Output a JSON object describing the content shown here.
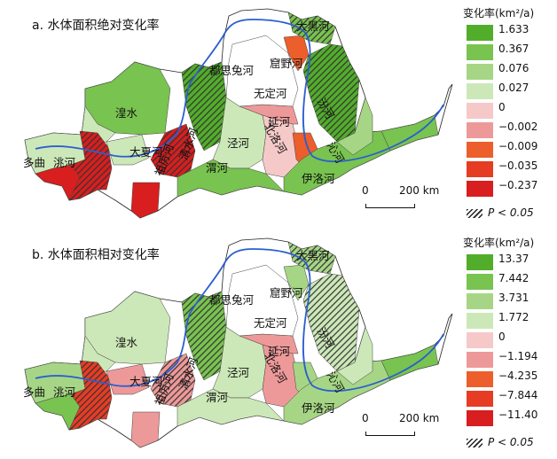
{
  "legend_unit_title": "变化率(km²/a)",
  "significance_label": "P < 0.05",
  "scale": {
    "zero": "0",
    "distance": "200 km"
  },
  "rivers": {
    "tao": "洮河",
    "huangshui": "湟水",
    "daxia": "大夏河",
    "duqu": "多曲",
    "weihe": "渭河",
    "jinghe": "泾河",
    "beiluo": "北洛河",
    "yanhe": "延河",
    "wuding": "无定河",
    "kuye": "窟野河",
    "dougui": "都思兔河",
    "dahei": "大黑河",
    "fenhe": "汾河",
    "yiluo": "伊洛河",
    "qinhe": "沁河",
    "zuli": "祖厉河",
    "qingshui": "清水河"
  },
  "panels": [
    {
      "title": "a. 水体面积绝对变化率",
      "legend": [
        {
          "label": "1.633",
          "color": "#52ad2b"
        },
        {
          "label": "0.367",
          "color": "#79c350"
        },
        {
          "label": "0.076",
          "color": "#a6d685"
        },
        {
          "label": "0.027",
          "color": "#cce8b8"
        },
        {
          "label": "0",
          "color": "#f6c9c9"
        },
        {
          "label": "−0.002",
          "color": "#ee9999"
        },
        {
          "label": "−0.009",
          "color": "#ec5e2c"
        },
        {
          "label": "−0.035",
          "color": "#e63c24"
        },
        {
          "label": "−0.237",
          "color": "#d81e1e"
        }
      ]
    },
    {
      "title": "b. 水体面积相对变化率",
      "legend": [
        {
          "label": "13.37",
          "color": "#52ad2b"
        },
        {
          "label": "7.442",
          "color": "#79c350"
        },
        {
          "label": "3.731",
          "color": "#a6d685"
        },
        {
          "label": "1.772",
          "color": "#cce8b8"
        },
        {
          "label": "0",
          "color": "#f6c9c9"
        },
        {
          "label": "−1.194",
          "color": "#ee9999"
        },
        {
          "label": "−4.235",
          "color": "#ec5e2c"
        },
        {
          "label": "−7.844",
          "color": "#e63c24"
        },
        {
          "label": "−11.40",
          "color": "#d81e1e"
        }
      ]
    }
  ]
}
